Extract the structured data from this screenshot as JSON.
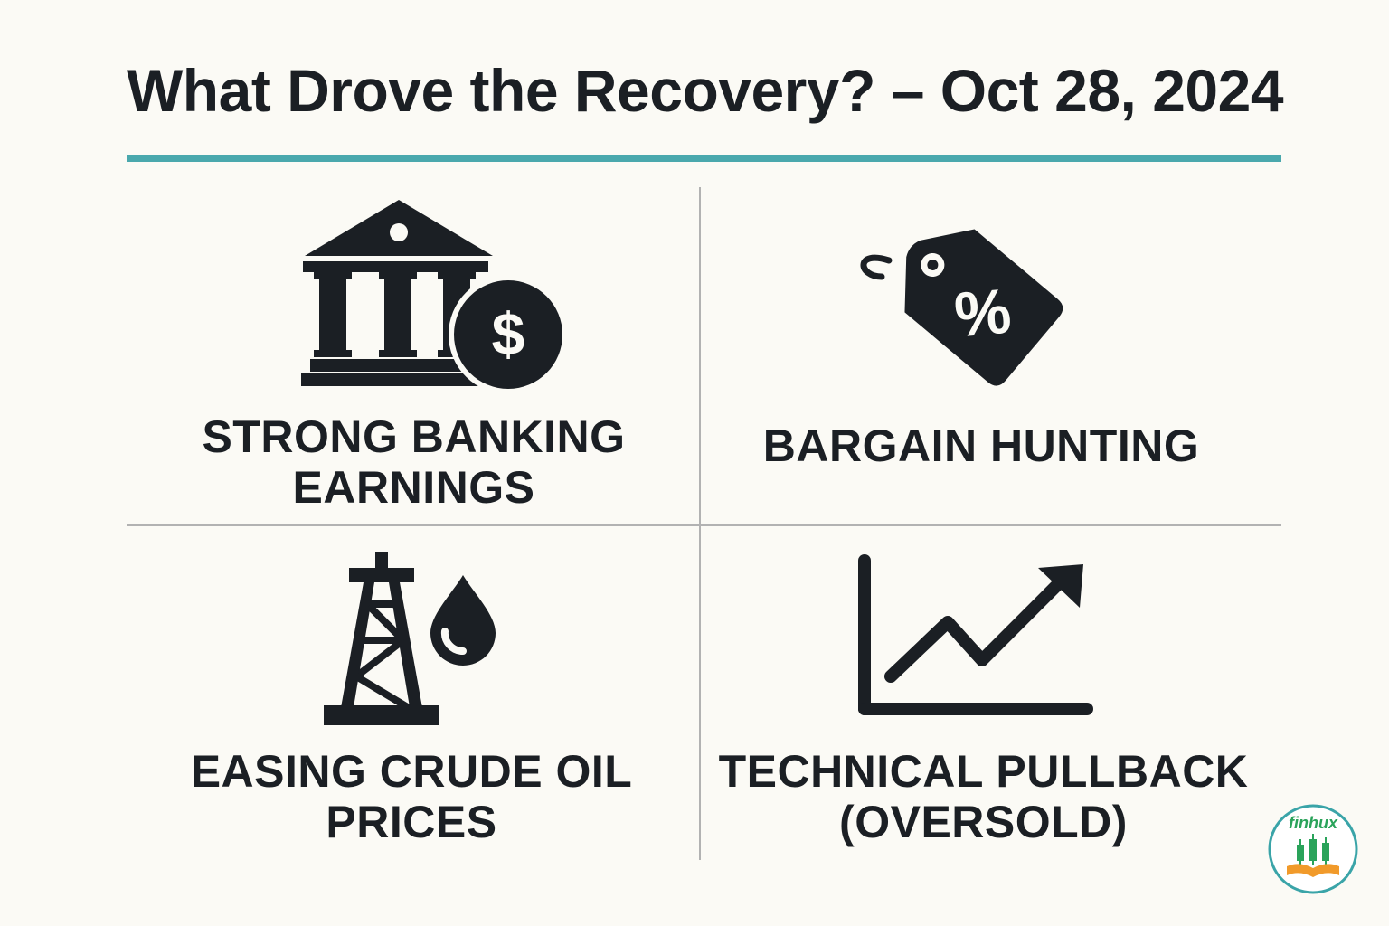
{
  "title": "What Drove the Recovery? – Oct 28, 2024",
  "colors": {
    "accent": "#4aa8ad",
    "ink": "#1b1f24",
    "divider": "#b2b2b2",
    "logo_green": "#2aa35a",
    "logo_orange": "#f19a2a"
  },
  "factors": [
    {
      "icon": "bank-dollar-icon",
      "line1": "STRONG BANKING",
      "line2": "EARNINGS"
    },
    {
      "icon": "percent-tag-icon",
      "line1": "BARGAIN HUNTING",
      "line2": ""
    },
    {
      "icon": "oil-derrick-drop-icon",
      "line1": "EASING CRUDE OIL",
      "line2": "PRICES"
    },
    {
      "icon": "rising-chart-icon",
      "line1": "TECHNICAL PULLBACK",
      "line2": "(OVERSOLD)"
    }
  ],
  "logo": {
    "text": "finhux",
    "icon": "finhux-logo-icon"
  }
}
